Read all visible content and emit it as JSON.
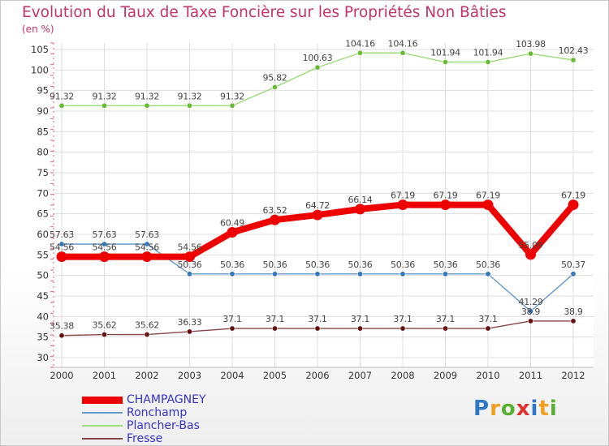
{
  "header": {
    "title": "Evolution du Taux de Taxe Foncière sur les Propriétés Non Bâties",
    "unit": "(en %)"
  },
  "brand": {
    "logo_text": "Proxiti",
    "letters": [
      "P",
      "r",
      "o",
      "x",
      "i",
      "t",
      "i"
    ],
    "colors": [
      "#2f78c8",
      "#f0a020",
      "#58b030",
      "#e03030",
      "#2f78c8",
      "#f0a020",
      "#58b030"
    ]
  },
  "chart_data": {
    "type": "line",
    "title": "Evolution du Taux de Taxe Foncière sur les Propriétés Non Bâties",
    "ylabel": "(en %)",
    "xlabel": "",
    "ylim": [
      30,
      105
    ],
    "yticks": [
      "30",
      "35",
      "40",
      "45",
      "50",
      "55",
      "60",
      "65",
      "70",
      "75",
      "80",
      "85",
      "90",
      "95",
      "100",
      "105"
    ],
    "x": [
      "2000",
      "2001",
      "2002",
      "2003",
      "2004",
      "2005",
      "2006",
      "2007",
      "2008",
      "2009",
      "2010",
      "2011",
      "2012"
    ],
    "series": [
      {
        "name": "Plancher-Bas",
        "color": "#99dd77",
        "marker": "#66bb33",
        "values": [
          91.32,
          91.32,
          91.32,
          91.32,
          91.32,
          95.82,
          100.63,
          104.16,
          104.16,
          101.94,
          101.94,
          103.98,
          102.43
        ],
        "labels": [
          "91.32",
          "91.32",
          "91.32",
          "91.32",
          "91.32",
          "95.82",
          "100.63",
          "104.16",
          "104.16",
          "101.94",
          "101.94",
          "103.98",
          "102.43"
        ]
      },
      {
        "name": "Ronchamp",
        "color": "#6699cc",
        "marker": "#3377bb",
        "values": [
          57.63,
          57.63,
          57.63,
          50.36,
          50.36,
          50.36,
          50.36,
          50.36,
          50.36,
          50.36,
          50.36,
          41.29,
          50.37
        ],
        "labels": [
          "57.63",
          "57.63",
          "57.63",
          "50.36",
          "50.36",
          "50.36",
          "50.36",
          "50.36",
          "50.36",
          "50.36",
          "50.36",
          "41.29",
          "50.37"
        ]
      },
      {
        "name": "Fresse",
        "color": "#884444",
        "marker": "#661111",
        "values": [
          35.38,
          35.62,
          35.62,
          36.33,
          37.1,
          37.1,
          37.1,
          37.1,
          37.1,
          37.1,
          37.1,
          38.9,
          38.9
        ],
        "labels": [
          "35.38",
          "35.62",
          "35.62",
          "36.33",
          "37.1",
          "37.1",
          "37.1",
          "37.1",
          "37.1",
          "37.1",
          "37.1",
          "38.9",
          "38.9"
        ]
      },
      {
        "name": "CHAMPAGNEY",
        "color": "#ee0000",
        "marker": "#ee0000",
        "values": [
          54.56,
          54.56,
          54.56,
          54.56,
          60.49,
          63.52,
          64.72,
          66.14,
          67.19,
          67.19,
          67.19,
          55.09,
          67.19
        ],
        "labels": [
          "54.56",
          "54.56",
          "54.56",
          "54.56",
          "60.49",
          "63.52",
          "64.72",
          "66.14",
          "67.19",
          "67.19",
          "67.19",
          "55.09",
          "67.19"
        ]
      }
    ],
    "legend": [
      {
        "name": "CHAMPAGNEY",
        "color": "#ee0000",
        "thick": true
      },
      {
        "name": "Ronchamp",
        "color": "#6699cc",
        "thick": false
      },
      {
        "name": "Plancher-Bas",
        "color": "#99dd77",
        "thick": false
      },
      {
        "name": "Fresse",
        "color": "#884444",
        "thick": false
      }
    ],
    "grid": true,
    "legend_position": "bottom-left"
  }
}
